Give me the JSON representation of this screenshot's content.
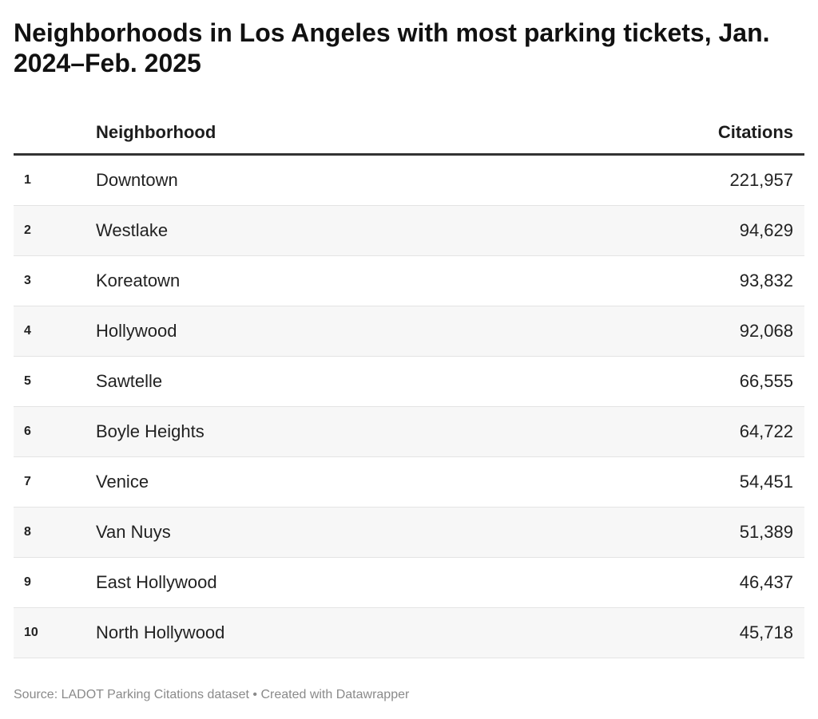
{
  "title": "Neighborhoods in Los Angeles with most parking tickets, Jan. 2024–Feb. 2025",
  "source": "Source: LADOT Parking Citations dataset • Created with Datawrapper",
  "chart_data": {
    "type": "table",
    "columns": [
      "",
      "Neighborhood",
      "Citations"
    ],
    "rows": [
      {
        "rank": "1",
        "neighborhood": "Downtown",
        "citations": "221,957"
      },
      {
        "rank": "2",
        "neighborhood": "Westlake",
        "citations": "94,629"
      },
      {
        "rank": "3",
        "neighborhood": "Koreatown",
        "citations": "93,832"
      },
      {
        "rank": "4",
        "neighborhood": "Hollywood",
        "citations": "92,068"
      },
      {
        "rank": "5",
        "neighborhood": "Sawtelle",
        "citations": "66,555"
      },
      {
        "rank": "6",
        "neighborhood": "Boyle Heights",
        "citations": "64,722"
      },
      {
        "rank": "7",
        "neighborhood": "Venice",
        "citations": "54,451"
      },
      {
        "rank": "8",
        "neighborhood": "Van Nuys",
        "citations": "51,389"
      },
      {
        "rank": "9",
        "neighborhood": "East Hollywood",
        "citations": "46,437"
      },
      {
        "rank": "10",
        "neighborhood": "North Hollywood",
        "citations": "45,718"
      }
    ],
    "colors": {
      "stripe": "#f7f7f7",
      "header_rule": "#333333",
      "source_text": "#8a8a8a"
    }
  }
}
